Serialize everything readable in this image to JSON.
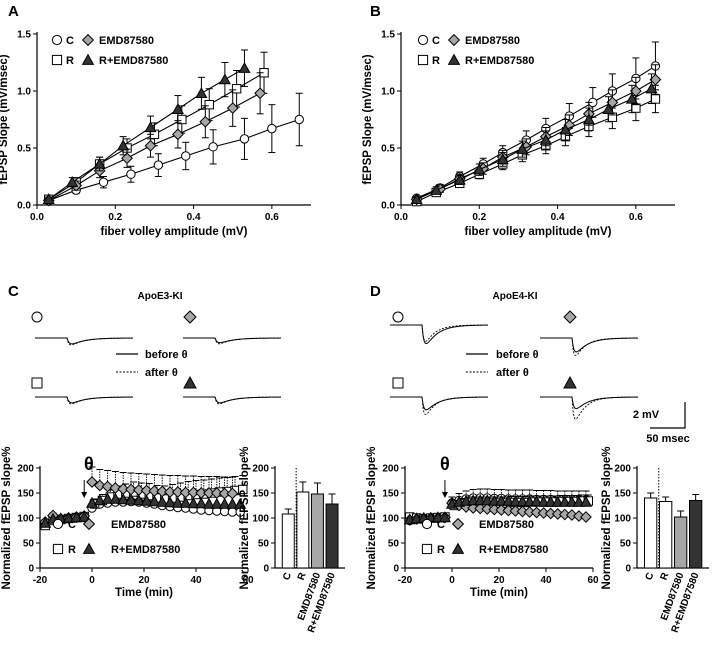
{
  "colors": {
    "control": "#ffffff",
    "R": "#ffffff",
    "EMD87580": "#a6a6a6",
    "R_EMD87580": "#333333",
    "stroke": "#000000"
  },
  "panels": {
    "A": {
      "letter": "A"
    },
    "B": {
      "letter": "B"
    },
    "C": {
      "letter": "C",
      "condition": "ApoE3-KI"
    },
    "D": {
      "letter": "D",
      "condition": "ApoE4-KI"
    }
  },
  "legend": {
    "C": "C",
    "R": "R",
    "EMD": "EMD87580",
    "REMD": "R+EMD87580"
  },
  "traces": {
    "before_label": "before θ",
    "after_label": "after θ",
    "scalebar_y": "2 mV",
    "scalebar_x": "50 msec"
  },
  "theta": "θ",
  "chart_data": [
    {
      "id": "A",
      "type": "line",
      "xlabel": "fiber volley amplitude (mV)",
      "ylabel": "fEPSP Slope (mV/msec)",
      "xlim": [
        0,
        0.7
      ],
      "ylim": [
        0,
        1.5
      ],
      "xticks": [
        "0.0",
        "0.2",
        "0.4",
        "0.6"
      ],
      "yticks": [
        "0.0",
        "0.5",
        "1.0",
        "1.5"
      ],
      "series": [
        {
          "name": "C",
          "marker": "circle",
          "fill": "#ffffff",
          "x": [
            0.03,
            0.1,
            0.17,
            0.24,
            0.31,
            0.38,
            0.45,
            0.53,
            0.6,
            0.67
          ],
          "y": [
            0.04,
            0.13,
            0.2,
            0.27,
            0.35,
            0.43,
            0.51,
            0.58,
            0.67,
            0.75
          ],
          "err": [
            0.01,
            0.03,
            0.05,
            0.07,
            0.1,
            0.12,
            0.15,
            0.18,
            0.21,
            0.23
          ]
        },
        {
          "name": "R",
          "marker": "square",
          "fill": "#ffffff",
          "x": [
            0.03,
            0.1,
            0.16,
            0.23,
            0.3,
            0.37,
            0.44,
            0.51,
            0.58
          ],
          "y": [
            0.05,
            0.2,
            0.36,
            0.5,
            0.62,
            0.75,
            0.88,
            1.02,
            1.16
          ],
          "err": [
            0.02,
            0.04,
            0.06,
            0.08,
            0.1,
            0.12,
            0.14,
            0.16,
            0.18
          ]
        },
        {
          "name": "EMD87580",
          "marker": "diamond",
          "fill": "#a6a6a6",
          "x": [
            0.03,
            0.1,
            0.16,
            0.23,
            0.29,
            0.36,
            0.43,
            0.5,
            0.57
          ],
          "y": [
            0.04,
            0.17,
            0.3,
            0.41,
            0.52,
            0.62,
            0.73,
            0.85,
            0.98
          ],
          "err": [
            0.02,
            0.04,
            0.06,
            0.08,
            0.1,
            0.12,
            0.14,
            0.16,
            0.18
          ]
        },
        {
          "name": "R+EMD87580",
          "marker": "triangle",
          "fill": "#333333",
          "x": [
            0.03,
            0.09,
            0.16,
            0.22,
            0.29,
            0.36,
            0.42,
            0.48,
            0.53
          ],
          "y": [
            0.05,
            0.2,
            0.36,
            0.52,
            0.68,
            0.84,
            0.98,
            1.1,
            1.2
          ],
          "err": [
            0.02,
            0.04,
            0.06,
            0.08,
            0.1,
            0.12,
            0.14,
            0.15,
            0.16
          ]
        }
      ]
    },
    {
      "id": "B",
      "type": "line",
      "xlabel": "fiber volley amplitude (mV)",
      "ylabel": "fEPSP Slope (mV/msec)",
      "xlim": [
        0,
        0.7
      ],
      "ylim": [
        0,
        1.5
      ],
      "xticks": [
        "0.0",
        "0.2",
        "0.4",
        "0.6"
      ],
      "yticks": [
        "0.0",
        "0.5",
        "1.0",
        "1.5"
      ],
      "series": [
        {
          "name": "C",
          "marker": "circle",
          "fill": "#ffffff",
          "x": [
            0.04,
            0.1,
            0.15,
            0.21,
            0.26,
            0.32,
            0.37,
            0.43,
            0.49,
            0.54,
            0.6,
            0.65
          ],
          "y": [
            0.06,
            0.15,
            0.25,
            0.36,
            0.46,
            0.57,
            0.67,
            0.78,
            0.9,
            1.0,
            1.11,
            1.22
          ],
          "err": [
            0.02,
            0.03,
            0.04,
            0.05,
            0.06,
            0.08,
            0.09,
            0.11,
            0.13,
            0.15,
            0.18,
            0.21
          ]
        },
        {
          "name": "R",
          "marker": "square",
          "fill": "#ffffff",
          "x": [
            0.04,
            0.09,
            0.15,
            0.2,
            0.26,
            0.31,
            0.37,
            0.42,
            0.48,
            0.54,
            0.6,
            0.65
          ],
          "y": [
            0.03,
            0.11,
            0.19,
            0.27,
            0.36,
            0.44,
            0.52,
            0.6,
            0.69,
            0.77,
            0.85,
            0.93
          ],
          "err": [
            0.01,
            0.02,
            0.03,
            0.04,
            0.05,
            0.06,
            0.07,
            0.08,
            0.09,
            0.1,
            0.11,
            0.12
          ]
        },
        {
          "name": "EMD87580",
          "marker": "diamond",
          "fill": "#a6a6a6",
          "x": [
            0.04,
            0.1,
            0.15,
            0.21,
            0.26,
            0.32,
            0.37,
            0.43,
            0.48,
            0.54,
            0.6,
            0.65
          ],
          "y": [
            0.05,
            0.14,
            0.23,
            0.32,
            0.42,
            0.51,
            0.6,
            0.7,
            0.8,
            0.9,
            1.0,
            1.1
          ],
          "err": [
            0.02,
            0.03,
            0.04,
            0.05,
            0.06,
            0.07,
            0.08,
            0.09,
            0.1,
            0.11,
            0.12,
            0.13
          ]
        },
        {
          "name": "R+EMD87580",
          "marker": "triangle",
          "fill": "#333333",
          "x": [
            0.04,
            0.09,
            0.15,
            0.2,
            0.26,
            0.31,
            0.37,
            0.42,
            0.48,
            0.53,
            0.59,
            0.64
          ],
          "y": [
            0.05,
            0.13,
            0.22,
            0.31,
            0.4,
            0.49,
            0.57,
            0.66,
            0.75,
            0.84,
            0.93,
            1.02
          ],
          "err": [
            0.02,
            0.03,
            0.04,
            0.05,
            0.06,
            0.07,
            0.08,
            0.09,
            0.1,
            0.11,
            0.12,
            0.13
          ]
        }
      ]
    },
    {
      "id": "C-time",
      "type": "scatter",
      "xlabel": "Time (min)",
      "ylabel": "Normalized fEPSP slope%",
      "xlim": [
        -20,
        60
      ],
      "ylim": [
        0,
        200
      ],
      "xticks": [
        "-20",
        "0",
        "20",
        "40",
        "60"
      ],
      "yticks": [
        "0",
        "50",
        "100",
        "150",
        "200"
      ],
      "theta_time": -3,
      "series": [
        {
          "name": "C",
          "marker": "circle",
          "fill": "#ffffff",
          "x": [
            -18,
            -15,
            -12,
            -9,
            -6,
            -3,
            0,
            3,
            6,
            9,
            12,
            15,
            18,
            21,
            24,
            27,
            30,
            33,
            36,
            39,
            42,
            45,
            48,
            51,
            54,
            57
          ],
          "y": [
            88,
            97,
            98,
            99,
            100,
            101,
            120,
            128,
            130,
            132,
            132,
            133,
            132,
            130,
            128,
            125,
            123,
            121,
            120,
            118,
            116,
            115,
            114,
            113,
            112,
            112
          ]
        },
        {
          "name": "R",
          "marker": "square",
          "fill": "#ffffff",
          "x": [
            -18,
            -15,
            -12,
            -9,
            -6,
            -3,
            1,
            4,
            7,
            10,
            13,
            16,
            19,
            22,
            25,
            28,
            31,
            34,
            37,
            40,
            43,
            46,
            49,
            52,
            55,
            58
          ],
          "y": [
            85,
            95,
            97,
            99,
            101,
            103,
            128,
            135,
            142,
            148,
            150,
            152,
            148,
            145,
            140,
            138,
            140,
            142,
            145,
            147,
            148,
            150,
            152,
            153,
            155,
            157
          ],
          "err": [
            4,
            4,
            4,
            4,
            4,
            4,
            10,
            12,
            14,
            16,
            18,
            20,
            22,
            24,
            25,
            26,
            27,
            28,
            28,
            28,
            28,
            28,
            28,
            28,
            28,
            28
          ]
        },
        {
          "name": "EMD87580",
          "marker": "diamond",
          "fill": "#a6a6a6",
          "x": [
            -18,
            -15,
            -12,
            -9,
            -6,
            -3,
            0,
            3,
            6,
            9,
            12,
            15,
            18,
            21,
            24,
            27,
            30,
            33,
            36,
            39,
            42,
            45,
            48,
            51,
            54
          ],
          "y": [
            92,
            105,
            98,
            100,
            102,
            104,
            172,
            165,
            163,
            160,
            158,
            157,
            156,
            155,
            154,
            153,
            152,
            152,
            151,
            151,
            150,
            150,
            150,
            149,
            149
          ],
          "err": [
            5,
            5,
            5,
            5,
            5,
            5,
            30,
            32,
            32,
            33,
            33,
            33,
            33,
            33,
            33,
            33,
            33,
            33,
            33,
            33,
            33,
            33,
            33,
            33,
            33
          ]
        },
        {
          "name": "R+EMD87580",
          "marker": "triangle",
          "fill": "#333333",
          "x": [
            -18,
            -15,
            -12,
            -9,
            -6,
            -3,
            0,
            3,
            6,
            9,
            12,
            15,
            18,
            21,
            24,
            27,
            30,
            33,
            36,
            39,
            42,
            45,
            48,
            51,
            54,
            57
          ],
          "y": [
            90,
            98,
            99,
            100,
            101,
            102,
            130,
            135,
            138,
            138,
            137,
            136,
            135,
            134,
            133,
            132,
            131,
            130,
            130,
            129,
            129,
            128,
            128,
            128,
            128,
            128
          ]
        }
      ]
    },
    {
      "id": "C-bar",
      "type": "bar",
      "ylabel": "Normalized fEPSP slope%",
      "categories": [
        "C",
        "R",
        "EMD87580",
        "R+EMD87580"
      ],
      "values": [
        108,
        152,
        148,
        128
      ],
      "errors": [
        10,
        20,
        22,
        20
      ],
      "fills": [
        "#ffffff",
        "#ffffff",
        "#a6a6a6",
        "#333333"
      ],
      "ylim": [
        0,
        200
      ],
      "yticks": [
        "0",
        "50",
        "100",
        "150",
        "200"
      ],
      "baseline": 100
    },
    {
      "id": "D-time",
      "type": "scatter",
      "xlabel": "Time (min)",
      "ylabel": "Normalized fEPSP slope%",
      "xlim": [
        -20,
        60
      ],
      "ylim": [
        0,
        200
      ],
      "xticks": [
        "-20",
        "0",
        "20",
        "40",
        "60"
      ],
      "yticks": [
        "0",
        "50",
        "100",
        "150",
        "200"
      ],
      "theta_time": -3,
      "series": [
        {
          "name": "C",
          "marker": "circle",
          "fill": "#ffffff",
          "x": [
            -18,
            -15,
            -12,
            -9,
            -6,
            -3,
            0,
            3,
            6,
            9,
            12,
            15,
            18,
            21,
            24,
            27,
            30,
            33,
            36,
            39,
            42,
            45,
            48,
            51,
            54,
            57
          ],
          "y": [
            95,
            98,
            99,
            100,
            100,
            101,
            130,
            135,
            138,
            140,
            140,
            140,
            139,
            139,
            138,
            138,
            138,
            138,
            137,
            137,
            137,
            136,
            136,
            136,
            136,
            136
          ],
          "err": [
            5,
            5,
            5,
            5,
            5,
            5,
            12,
            14,
            16,
            17,
            18,
            18,
            18,
            18,
            18,
            18,
            18,
            18,
            18,
            18,
            18,
            18,
            18,
            18,
            18,
            18
          ]
        },
        {
          "name": "R",
          "marker": "square",
          "fill": "#ffffff",
          "x": [
            -18,
            -15,
            -12,
            -9,
            -6,
            -3,
            1,
            4,
            7,
            10,
            13,
            16,
            19,
            22,
            25,
            28,
            31,
            34,
            37,
            40,
            43,
            46,
            49,
            52,
            55,
            58
          ],
          "y": [
            102,
            100,
            98,
            100,
            101,
            102,
            125,
            128,
            130,
            130,
            130,
            130,
            130,
            130,
            131,
            131,
            131,
            132,
            132,
            132,
            132,
            133,
            133,
            133,
            134,
            134
          ],
          "err": [
            5,
            5,
            5,
            5,
            5,
            5,
            10,
            11,
            12,
            12,
            12,
            12,
            12,
            12,
            12,
            12,
            12,
            12,
            12,
            12,
            12,
            12,
            12,
            12,
            12,
            12
          ]
        },
        {
          "name": "EMD87580",
          "marker": "diamond",
          "fill": "#a6a6a6",
          "x": [
            -18,
            -15,
            -12,
            -9,
            -6,
            -3,
            0,
            3,
            6,
            9,
            12,
            15,
            18,
            21,
            24,
            27,
            30,
            33,
            36,
            39,
            42,
            45,
            48,
            51,
            54,
            57
          ],
          "y": [
            96,
            98,
            99,
            100,
            100,
            101,
            130,
            125,
            122,
            120,
            119,
            118,
            117,
            116,
            115,
            114,
            113,
            112,
            111,
            110,
            109,
            108,
            107,
            106,
            104,
            102
          ]
        },
        {
          "name": "R+EMD87580",
          "marker": "triangle",
          "fill": "#333333",
          "x": [
            -18,
            -15,
            -12,
            -9,
            -6,
            -3,
            0,
            3,
            6,
            9,
            12,
            15,
            18,
            21,
            24,
            27,
            30,
            33,
            36,
            39,
            42,
            45,
            48,
            51,
            54,
            57
          ],
          "y": [
            97,
            99,
            100,
            100,
            101,
            101,
            128,
            132,
            134,
            135,
            135,
            135,
            134,
            134,
            134,
            133,
            133,
            133,
            133,
            132,
            132,
            132,
            132,
            132,
            132,
            132
          ]
        }
      ]
    },
    {
      "id": "D-bar",
      "type": "bar",
      "ylabel": "Normalized fEPSP slope%",
      "categories": [
        "C",
        "R",
        "EMD87580",
        "R+EMD87580"
      ],
      "values": [
        140,
        133,
        102,
        135
      ],
      "errors": [
        10,
        9,
        12,
        12
      ],
      "fills": [
        "#ffffff",
        "#ffffff",
        "#a6a6a6",
        "#333333"
      ],
      "ylim": [
        0,
        200
      ],
      "yticks": [
        "0",
        "50",
        "100",
        "150",
        "200"
      ],
      "baseline": 100
    }
  ]
}
